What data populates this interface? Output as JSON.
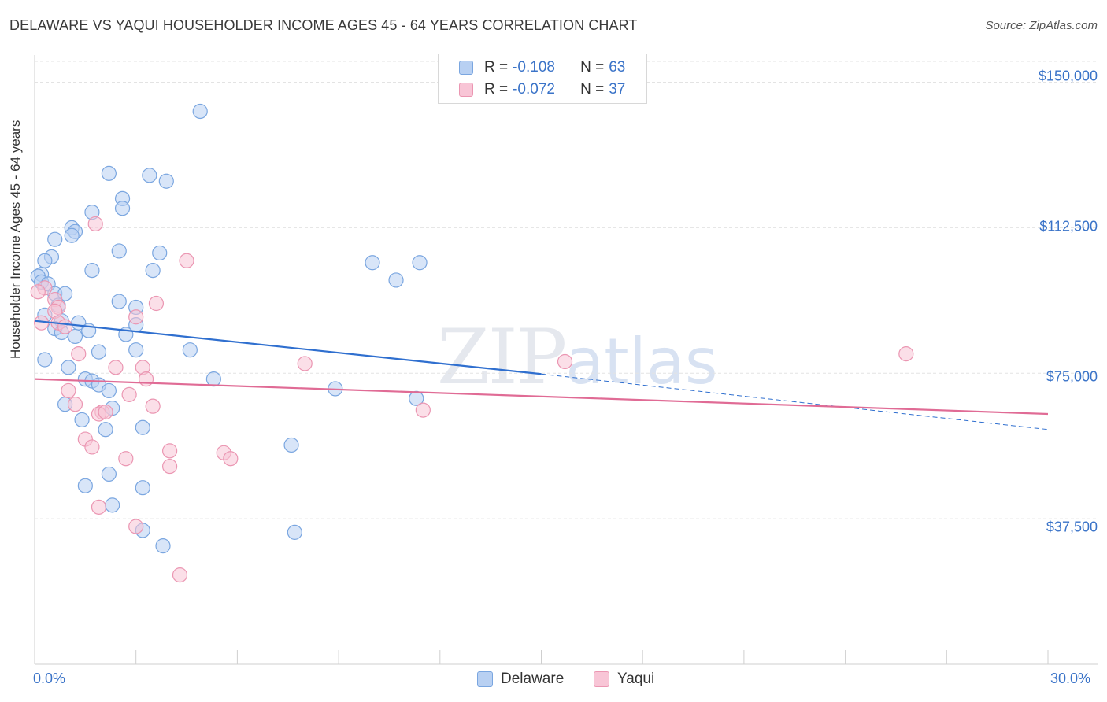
{
  "title": "DELAWARE VS YAQUI HOUSEHOLDER INCOME AGES 45 - 64 YEARS CORRELATION CHART",
  "source": "Source: ZipAtlas.com",
  "watermark": {
    "zip": "ZIP",
    "atlas": "atlas"
  },
  "legend": {
    "r_label": "R =",
    "n_label": "N =",
    "rows": [
      {
        "r": "-0.108",
        "n": "63"
      },
      {
        "r": "-0.072",
        "n": "37"
      }
    ]
  },
  "colors": {
    "blue_fill": "#b8d0f2",
    "blue_stroke": "#7aa6e0",
    "blue_line": "#2f6fcf",
    "pink_fill": "#f8c5d6",
    "pink_stroke": "#eb96b2",
    "pink_line": "#e06b95",
    "grid": "#e3e3e3",
    "axis_text": "#3a73c8"
  },
  "chart_data": {
    "type": "scatter",
    "title": "DELAWARE VS YAQUI HOUSEHOLDER INCOME AGES 45 - 64 YEARS CORRELATION CHART",
    "xlabel": "",
    "ylabel": "Householder Income Ages 45 - 64 years",
    "xlim": [
      0,
      30
    ],
    "ylim": [
      0,
      157000
    ],
    "x_tick_labels": [
      "0.0%",
      "30.0%"
    ],
    "y_ticks": [
      37500,
      75000,
      112500,
      150000
    ],
    "y_tick_labels": [
      "$37,500",
      "$75,000",
      "$112,500",
      "$150,000"
    ],
    "grid": true,
    "legend_position": "top-center",
    "series": [
      {
        "name": "Delaware",
        "r": -0.108,
        "n": 63,
        "trend": {
          "x0": 0,
          "y0": 88500,
          "x1": 15,
          "y1": 74800,
          "dash_to_x": 30,
          "dash_to_y": 60500
        },
        "points": [
          [
            4.9,
            142500
          ],
          [
            2.2,
            126500
          ],
          [
            3.4,
            126000
          ],
          [
            3.9,
            124500
          ],
          [
            2.6,
            120000
          ],
          [
            2.6,
            117500
          ],
          [
            1.7,
            116500
          ],
          [
            1.1,
            112500
          ],
          [
            1.2,
            111500
          ],
          [
            1.1,
            110500
          ],
          [
            0.6,
            109500
          ],
          [
            2.5,
            106500
          ],
          [
            3.7,
            106000
          ],
          [
            0.5,
            105000
          ],
          [
            0.3,
            104000
          ],
          [
            10.0,
            103500
          ],
          [
            11.4,
            103500
          ],
          [
            1.7,
            101500
          ],
          [
            3.5,
            101500
          ],
          [
            0.2,
            100500
          ],
          [
            0.1,
            100000
          ],
          [
            10.7,
            99000
          ],
          [
            0.2,
            98500
          ],
          [
            0.4,
            98000
          ],
          [
            0.6,
            95500
          ],
          [
            0.9,
            95500
          ],
          [
            2.5,
            93500
          ],
          [
            0.7,
            92500
          ],
          [
            3.0,
            92000
          ],
          [
            0.3,
            90000
          ],
          [
            0.8,
            88500
          ],
          [
            1.3,
            88000
          ],
          [
            3.0,
            87500
          ],
          [
            0.6,
            86500
          ],
          [
            1.6,
            86000
          ],
          [
            0.8,
            85500
          ],
          [
            2.7,
            85000
          ],
          [
            1.2,
            84500
          ],
          [
            3.0,
            81000
          ],
          [
            4.6,
            81000
          ],
          [
            1.9,
            80500
          ],
          [
            0.3,
            78500
          ],
          [
            1.0,
            76500
          ],
          [
            5.3,
            73500
          ],
          [
            1.5,
            73500
          ],
          [
            1.7,
            73000
          ],
          [
            1.9,
            72000
          ],
          [
            8.9,
            71000
          ],
          [
            2.2,
            70500
          ],
          [
            11.3,
            68500
          ],
          [
            0.9,
            67000
          ],
          [
            2.3,
            66000
          ],
          [
            1.4,
            63000
          ],
          [
            2.1,
            60500
          ],
          [
            3.2,
            61000
          ],
          [
            7.6,
            56500
          ],
          [
            2.2,
            49000
          ],
          [
            1.5,
            46000
          ],
          [
            3.2,
            45500
          ],
          [
            2.3,
            41000
          ],
          [
            3.2,
            34500
          ],
          [
            7.7,
            34000
          ],
          [
            3.8,
            30500
          ]
        ]
      },
      {
        "name": "Yaqui",
        "r": -0.072,
        "n": 37,
        "trend": {
          "x0": 0,
          "y0": 73500,
          "x1": 30,
          "y1": 64500
        },
        "points": [
          [
            1.8,
            113500
          ],
          [
            4.5,
            104000
          ],
          [
            0.3,
            97000
          ],
          [
            0.1,
            96000
          ],
          [
            0.6,
            94000
          ],
          [
            0.7,
            92000
          ],
          [
            3.6,
            93000
          ],
          [
            0.6,
            91000
          ],
          [
            3.0,
            89500
          ],
          [
            0.7,
            88000
          ],
          [
            0.9,
            87000
          ],
          [
            1.3,
            80000
          ],
          [
            8.0,
            77500
          ],
          [
            15.7,
            78000
          ],
          [
            25.8,
            80000
          ],
          [
            2.4,
            76500
          ],
          [
            3.2,
            76500
          ],
          [
            3.3,
            73500
          ],
          [
            1.0,
            70500
          ],
          [
            2.8,
            69500
          ],
          [
            1.2,
            67000
          ],
          [
            3.5,
            66500
          ],
          [
            2.0,
            65000
          ],
          [
            1.9,
            64500
          ],
          [
            11.5,
            65500
          ],
          [
            2.1,
            65000
          ],
          [
            1.5,
            58000
          ],
          [
            1.7,
            56000
          ],
          [
            4.0,
            55000
          ],
          [
            5.6,
            54500
          ],
          [
            2.7,
            53000
          ],
          [
            5.8,
            53000
          ],
          [
            4.0,
            51000
          ],
          [
            1.9,
            40500
          ],
          [
            3.0,
            35500
          ],
          [
            4.3,
            23000
          ],
          [
            0.2,
            88000
          ]
        ]
      }
    ]
  }
}
